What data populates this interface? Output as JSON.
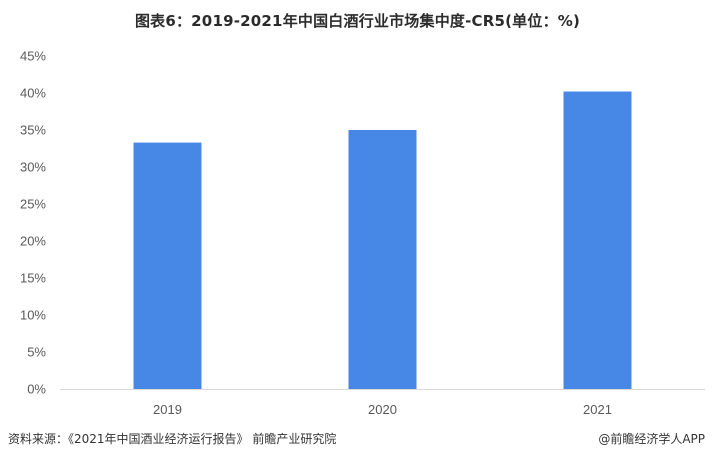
{
  "title": "图表6：2019-2021年中国白酒行业市场集中度-CR5(单位：%)",
  "footer": {
    "source": "资料来源：《2021年中国酒业经济运行报告》 前瞻产业研究院",
    "brand": "@前瞻经济学人APP"
  },
  "colors": {
    "bar": "#4787E6",
    "axis": "#D9D9D9"
  },
  "chart_data": {
    "type": "bar",
    "categories": [
      "2019",
      "2020",
      "2021"
    ],
    "values": [
      33.3,
      35.0,
      40.2
    ],
    "ylim": [
      0,
      45
    ],
    "yticks": [
      0,
      5,
      10,
      15,
      20,
      25,
      30,
      35,
      40,
      45
    ],
    "yticklabels": [
      "0%",
      "5%",
      "10%",
      "15%",
      "20%",
      "25%",
      "30%",
      "35%",
      "40%",
      "45%"
    ],
    "grid": false,
    "xlabel": "",
    "ylabel": ""
  }
}
